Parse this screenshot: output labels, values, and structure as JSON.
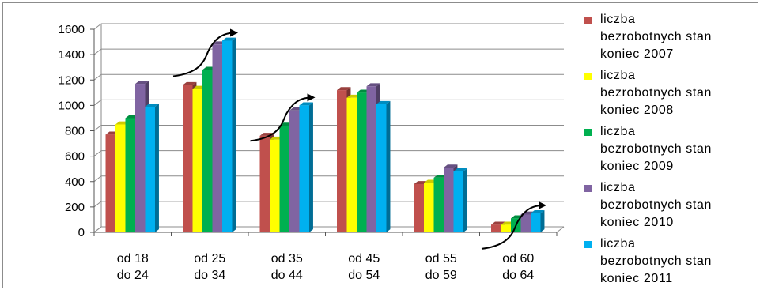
{
  "chart_data": {
    "type": "bar",
    "categories": [
      [
        "od 18",
        "do 24"
      ],
      [
        "od 25",
        "do 34"
      ],
      [
        "od 35",
        "do 44"
      ],
      [
        "od 45",
        "do 54"
      ],
      [
        "od 55",
        "do 59"
      ],
      [
        "od 60",
        "do 64"
      ]
    ],
    "series": [
      {
        "name": [
          "liczba",
          "bezrobotnych stan",
          "koniec 2007"
        ],
        "color": "#c0504d",
        "values": [
          770,
          1160,
          760,
          1120,
          380,
          60
        ]
      },
      {
        "name": [
          "liczba",
          "bezrobotnych stan",
          "koniec 2008"
        ],
        "color": "#ffff00",
        "values": [
          850,
          1130,
          730,
          1060,
          390,
          60
        ]
      },
      {
        "name": [
          "liczba",
          "bezrobotnych stan",
          "koniec 2009"
        ],
        "color": "#00b050",
        "values": [
          900,
          1280,
          840,
          1100,
          430,
          110
        ]
      },
      {
        "name": [
          "liczba",
          "bezrobotnych stan",
          "koniec 2010"
        ],
        "color": "#8064a2",
        "values": [
          1170,
          1480,
          960,
          1150,
          510,
          140
        ]
      },
      {
        "name": [
          "liczba",
          "bezrobotnych stan",
          "koniec 2011"
        ],
        "color": "#00b0f0",
        "values": [
          990,
          1510,
          1000,
          1010,
          480,
          150
        ]
      }
    ],
    "ylim": [
      0,
      1600
    ],
    "yticks": [
      0,
      200,
      400,
      600,
      800,
      1000,
      1200,
      1400,
      1600
    ],
    "grid": true,
    "legend": "right",
    "trend_arrows_on_categories": [
      1,
      2,
      5
    ]
  }
}
